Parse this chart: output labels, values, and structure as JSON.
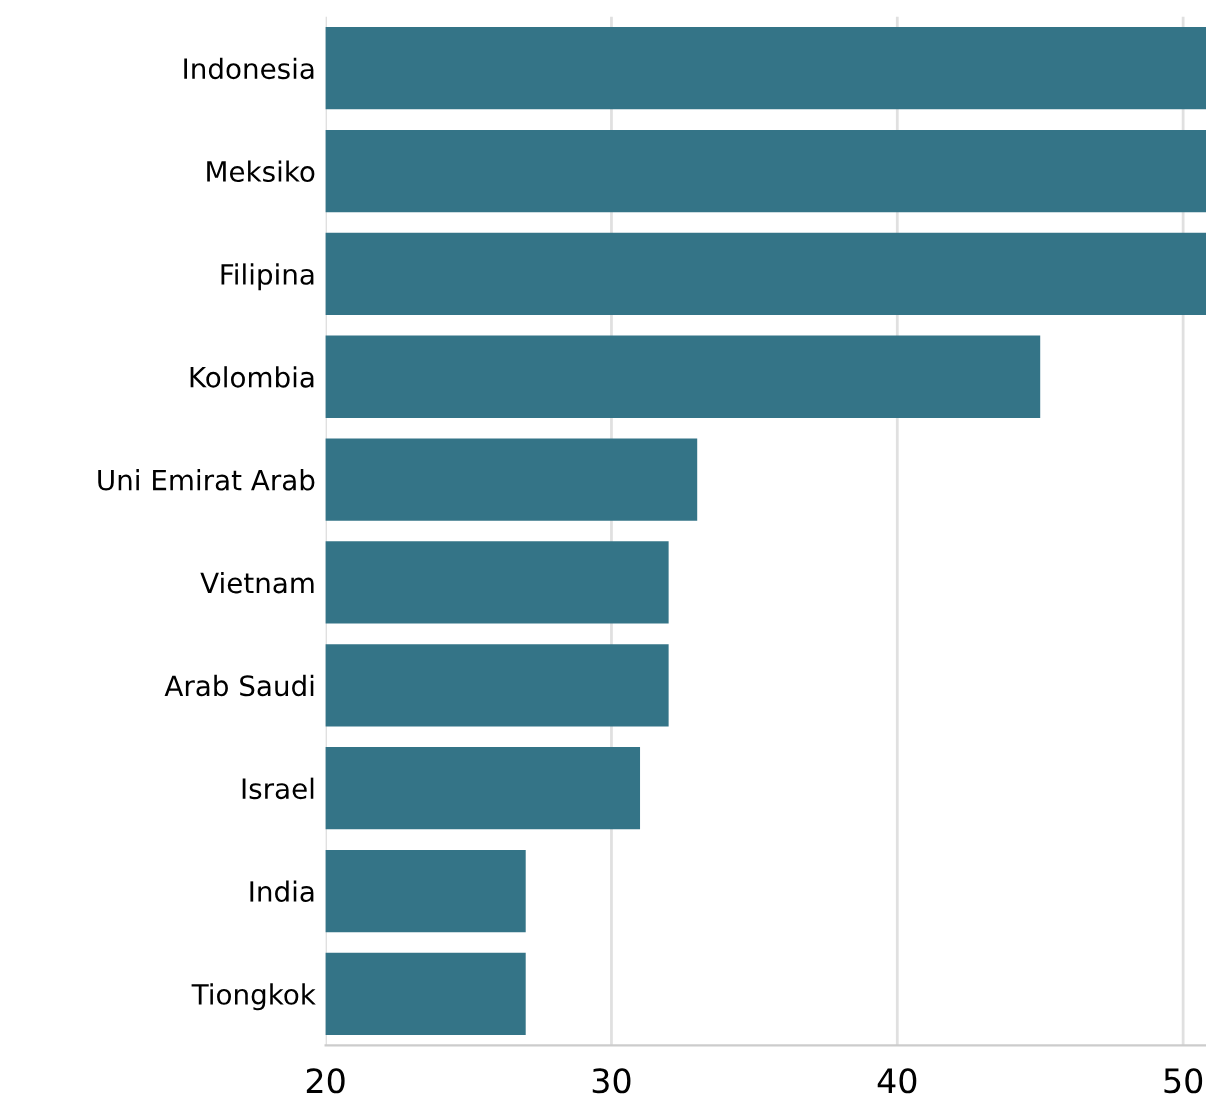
{
  "chart_data": {
    "type": "bar",
    "orientation": "horizontal",
    "categories": [
      "Indonesia",
      "Meksiko",
      "Filipina",
      "Kolombia",
      "Uni Emirat Arab",
      "Vietnam",
      "Arab Saudi",
      "Israel",
      "India",
      "Tiongkok"
    ],
    "values": [
      50.8,
      50.8,
      50.8,
      45,
      33,
      32,
      32,
      31,
      27,
      27
    ],
    "color": "#347487",
    "xlim": [
      20,
      50.8
    ],
    "xticks": [
      20,
      30,
      40,
      50
    ],
    "grid": "x"
  }
}
